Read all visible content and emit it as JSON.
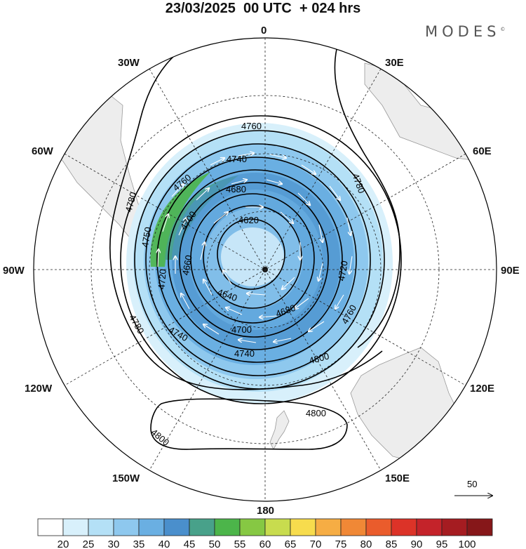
{
  "title": "23/03/2025  00 UTC  + 024 hrs",
  "brand": "MODES",
  "brand_mark": "©",
  "longitudes": {
    "top": "0",
    "bottom": "180",
    "w30": "30W",
    "e30": "30E",
    "w60": "60W",
    "e60": "60E",
    "w90": "90W",
    "e90": "90E",
    "w120": "120W",
    "e120": "120E",
    "w150": "150W",
    "e150": "150E"
  },
  "contour_labels": [
    "4760",
    "4740",
    "4760",
    "4680",
    "4700",
    "4780",
    "4620",
    "4750",
    "4660",
    "4720",
    "4640",
    "4680",
    "4720",
    "4780",
    "4760",
    "4700",
    "4740",
    "4740",
    "4780",
    "4800",
    "4800"
  ],
  "reference_vector": {
    "value": "50"
  },
  "colorbar": {
    "labels": [
      "20",
      "25",
      "30",
      "35",
      "40",
      "45",
      "50",
      "55",
      "60",
      "65",
      "70",
      "75",
      "80",
      "85",
      "90",
      "95",
      "100"
    ],
    "colors": [
      "#ffffff",
      "#d8f0fb",
      "#b4e0f6",
      "#8ec8ee",
      "#6aafe2",
      "#4a8fcc",
      "#48a18a",
      "#4cb54a",
      "#86c843",
      "#c8dc4e",
      "#f7dc4d",
      "#f6ad44",
      "#f08836",
      "#ea5c2c",
      "#dc3328",
      "#c4232a",
      "#a51c21",
      "#861719"
    ]
  },
  "colors": {
    "land": "#ededed",
    "jet_light": "#b4e0f6",
    "jet_mid": "#6aafe2",
    "jet_dark": "#4a8fcc",
    "jet_core": "#4cb54a"
  }
}
